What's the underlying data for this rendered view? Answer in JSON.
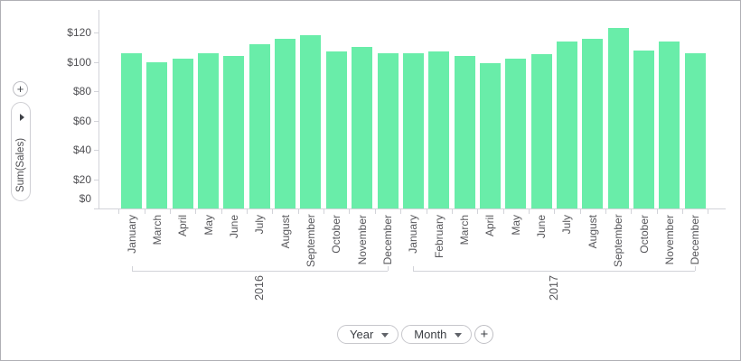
{
  "left_panel": {
    "add_button_label": "+",
    "value_pill": {
      "label": "Sum(Sales)"
    }
  },
  "bottom_panel": {
    "chips": [
      {
        "label": "Year"
      },
      {
        "label": "Month"
      }
    ],
    "add_button_label": "+"
  },
  "chart_data": {
    "type": "bar",
    "title": "",
    "xlabel": "",
    "ylabel": "Sum(Sales)",
    "ylim": [
      0,
      130
    ],
    "grid": false,
    "legend": "none",
    "bar_color": "#69eda9",
    "y_tick_values": [
      0,
      20,
      40,
      60,
      80,
      100,
      120
    ],
    "y_tick_labels": [
      "$0",
      "$20",
      "$40",
      "$60",
      "$80",
      "$100",
      "$120"
    ],
    "groups": [
      {
        "label": "2016",
        "categories": [
          "January",
          "March",
          "April",
          "May",
          "June",
          "July",
          "August",
          "September",
          "October",
          "November",
          "December"
        ],
        "values": [
          106,
          100,
          102,
          106,
          104,
          112,
          116,
          118,
          107,
          110,
          106
        ]
      },
      {
        "label": "2017",
        "categories": [
          "January",
          "February",
          "March",
          "April",
          "May",
          "June",
          "July",
          "August",
          "September",
          "October",
          "November",
          "December"
        ],
        "values": [
          106,
          107,
          104,
          99,
          102,
          105,
          114,
          116,
          123,
          108,
          114,
          106
        ]
      }
    ]
  }
}
